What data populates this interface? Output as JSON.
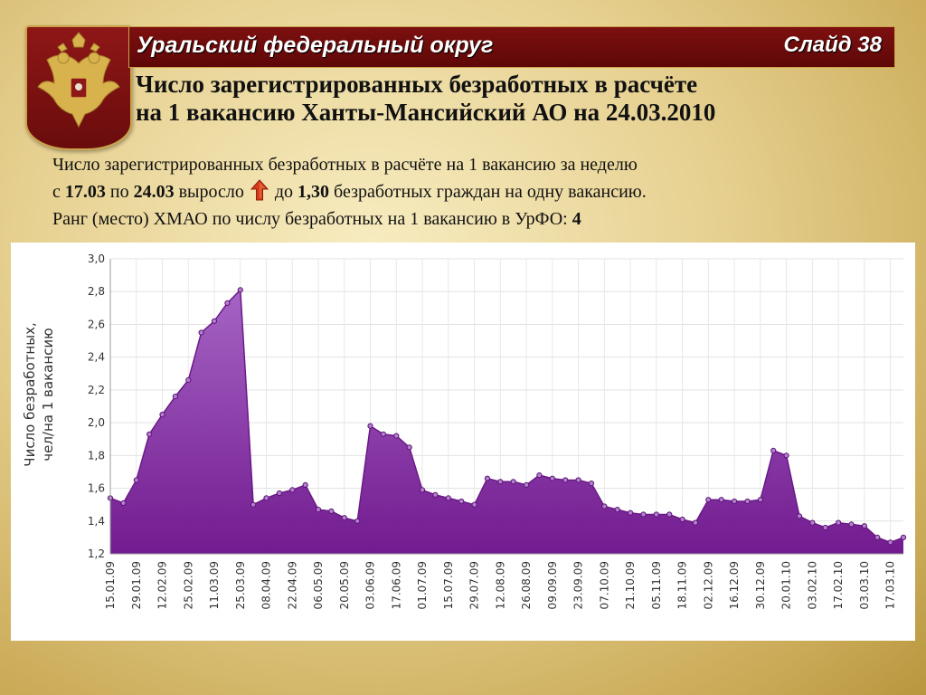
{
  "header": {
    "region": "Уральский федеральный округ",
    "slide": "Слайд 38",
    "title_line1": "Число зарегистрированных безработных в расчёте",
    "title_line2": "на 1 вакансию Ханты-Мансийский АО на 24.03.2010"
  },
  "description": {
    "line1": "Число зарегистрированных безработных в расчёте на 1 вакансию за неделю",
    "l2_pre": "с ",
    "l2_date1": "17.03",
    "l2_mid1": " по ",
    "l2_date2": "24.03",
    "l2_mid2": " выросло ",
    "l2_mid3": " до ",
    "l2_value": "1,30",
    "l2_post": " безработных граждан на одну вакансию.",
    "l3_pre": "Ранг (место) ХМАО по числу безработных на 1 вакансию в УрФО: ",
    "l3_rank": "4"
  },
  "colors": {
    "banner": "#6e0c0c",
    "area_fill_top": "#a15cc1",
    "area_fill_bottom": "#6b0f8a",
    "line": "#6a1a86"
  },
  "chart_data": {
    "type": "area",
    "ylabel_line1": "Число безработных,",
    "ylabel_line2": "чел/на 1 вакансию",
    "ylim": [
      1.2,
      3.0
    ],
    "yticks": [
      "1,2",
      "1,4",
      "1,6",
      "1,8",
      "2,0",
      "2,2",
      "2,4",
      "2,6",
      "2,8",
      "3,0"
    ],
    "grid": true,
    "xtick_labels": [
      "15.01.09",
      "29.01.09",
      "12.02.09",
      "25.02.09",
      "11.03.09",
      "25.03.09",
      "08.04.09",
      "22.04.09",
      "06.05.09",
      "20.05.09",
      "03.06.09",
      "17.06.09",
      "01.07.09",
      "15.07.09",
      "29.07.09",
      "12.08.09",
      "26.08.09",
      "09.09.09",
      "23.09.09",
      "07.10.09",
      "21.10.09",
      "05.11.09",
      "18.11.09",
      "02.12.09",
      "16.12.09",
      "30.12.09",
      "20.01.10",
      "03.02.10",
      "17.02.10",
      "03.03.10",
      "17.03.10"
    ],
    "values": [
      1.54,
      1.51,
      1.65,
      1.93,
      2.05,
      2.16,
      2.26,
      2.55,
      2.62,
      2.73,
      2.81,
      1.5,
      1.54,
      1.57,
      1.59,
      1.62,
      1.47,
      1.46,
      1.42,
      1.4,
      1.98,
      1.93,
      1.92,
      1.85,
      1.59,
      1.56,
      1.54,
      1.52,
      1.5,
      1.66,
      1.64,
      1.64,
      1.62,
      1.68,
      1.66,
      1.65,
      1.65,
      1.63,
      1.49,
      1.47,
      1.45,
      1.44,
      1.44,
      1.44,
      1.41,
      1.39,
      1.53,
      1.53,
      1.52,
      1.52,
      1.53,
      1.83,
      1.8,
      1.43,
      1.39,
      1.36,
      1.39,
      1.38,
      1.37,
      1.3,
      1.27,
      1.3
    ]
  }
}
